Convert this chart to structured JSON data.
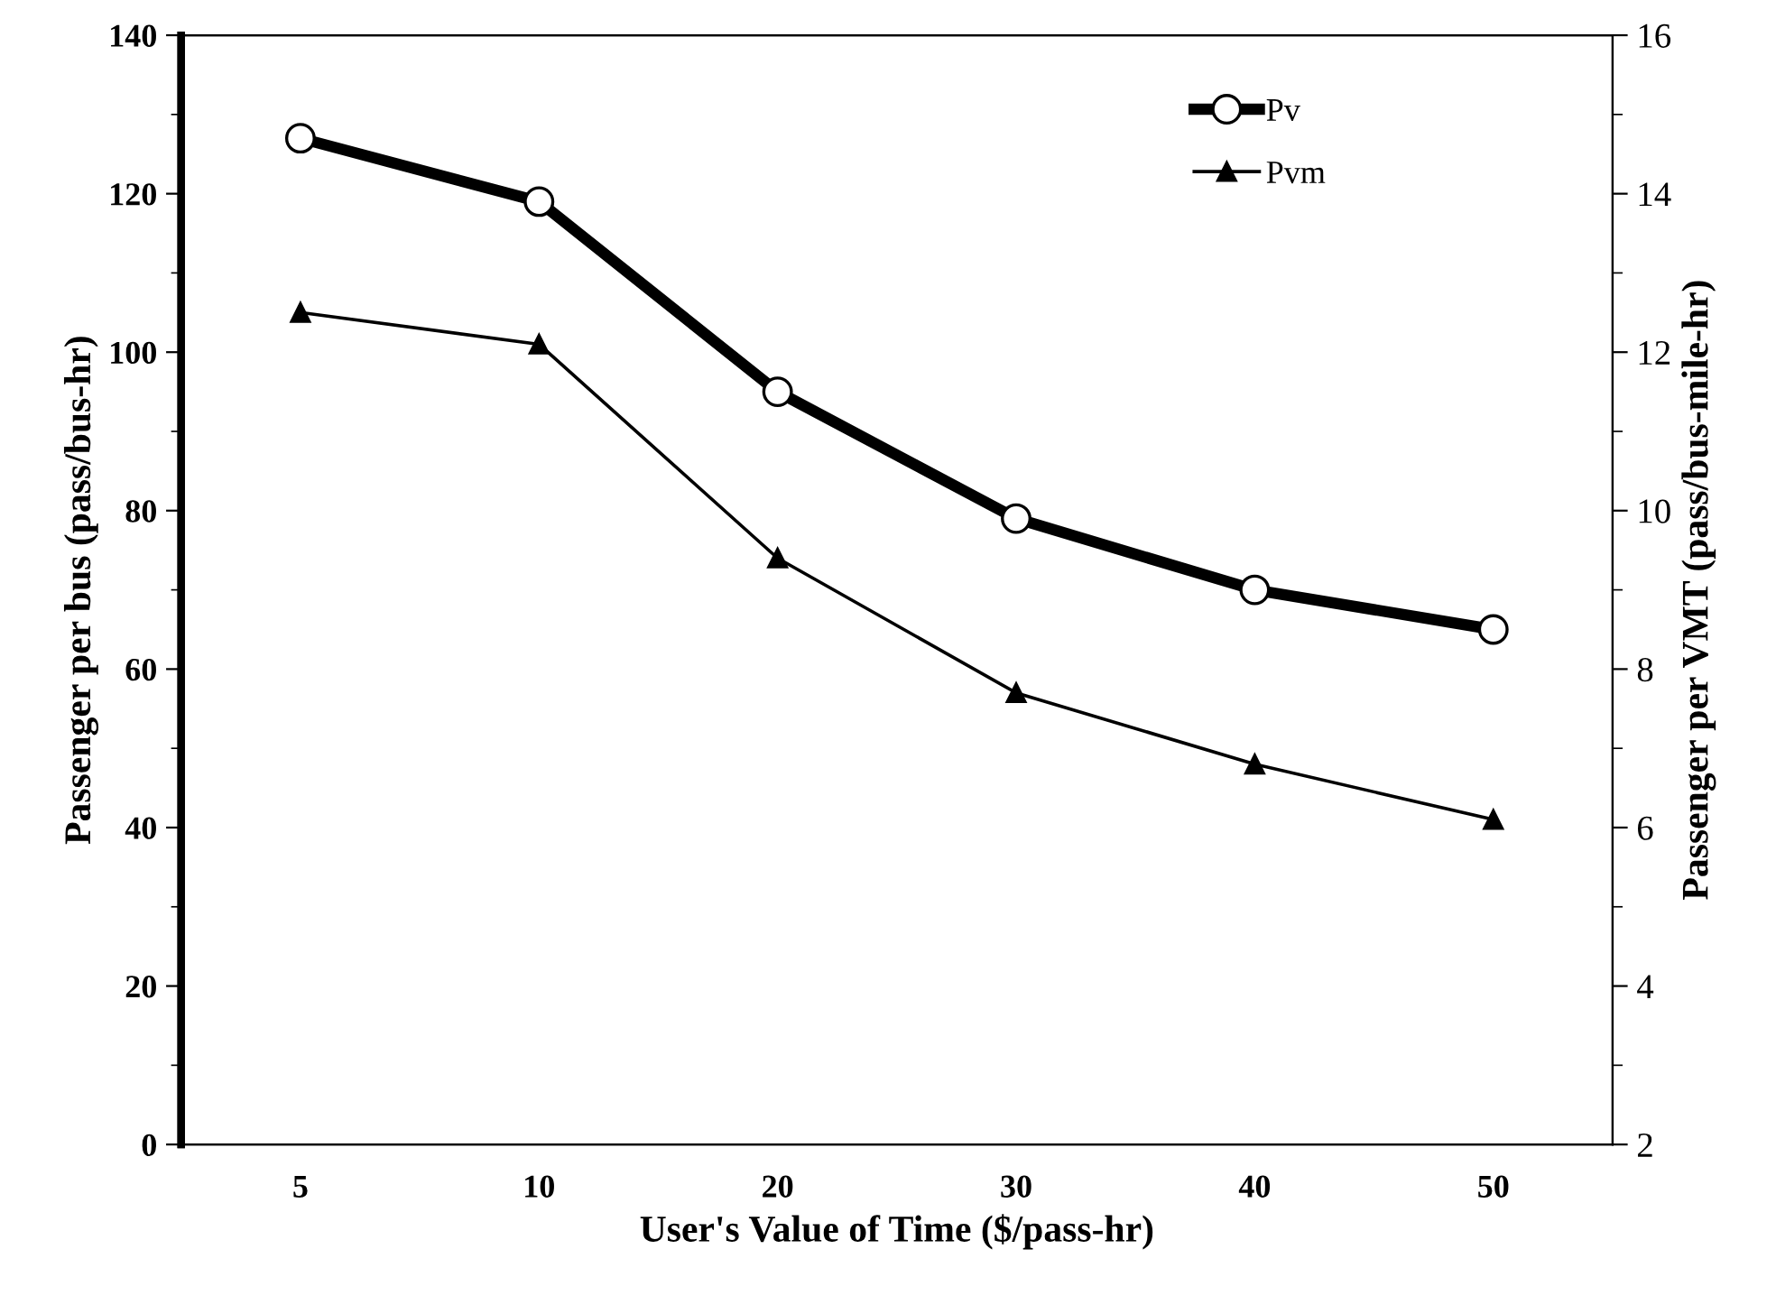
{
  "chart_data": {
    "type": "line",
    "xlabel": "User's Value of Time ($/pass-hr)",
    "ylabel": "Passenger per bus (pass/bus-hr)",
    "y2label": "Passenger per VMT (pass/bus-mile-hr)",
    "categories": [
      "5",
      "10",
      "20",
      "30",
      "40",
      "50"
    ],
    "series": [
      {
        "name": "Pv",
        "color": "#000000",
        "values": [
          127,
          119,
          95,
          79,
          70,
          65
        ],
        "marker": "circle"
      },
      {
        "name": "Pvm",
        "color": "#000000",
        "values": [
          12.5,
          12.1,
          9.4,
          7.7,
          6.8,
          6.1
        ],
        "marker": "triangle",
        "axis": "y2"
      }
    ],
    "ylim": [
      0,
      140
    ],
    "yticks": [
      0,
      20,
      40,
      60,
      80,
      100,
      120,
      140
    ],
    "y2lim": [
      2,
      16
    ],
    "y2ticks": [
      2,
      4,
      6,
      8,
      10,
      12,
      14,
      16
    ],
    "grid": false,
    "legend": "top right",
    "line_style": "solid"
  }
}
